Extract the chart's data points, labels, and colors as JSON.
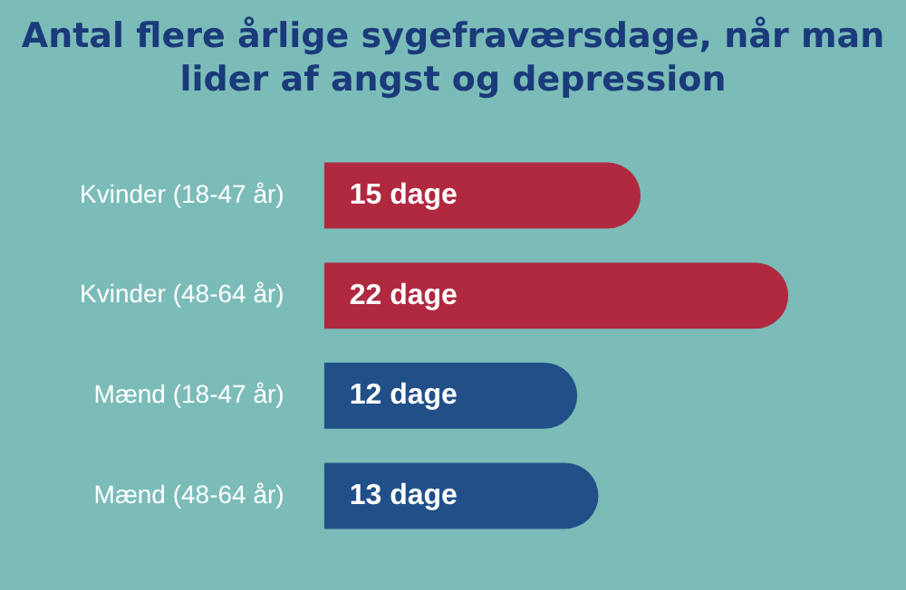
{
  "chart_data": {
    "type": "bar",
    "orientation": "horizontal",
    "title": "Antal flere årlige sygefraværsdage, når man lider af angst og depression",
    "categories": [
      "Kvinder (18-47 år)",
      "Kvinder (48-64 år)",
      "Mænd (18-47 år)",
      "Mænd (48-64 år)"
    ],
    "values": [
      15,
      22,
      12,
      13
    ],
    "colors": [
      "#b0293f",
      "#b0293f",
      "#215089",
      "#215089"
    ],
    "value_labels": [
      "15 dage",
      "22 dage",
      "12 dage",
      "13 dage"
    ],
    "tick_labels": "y",
    "grid": false,
    "legend": false
  }
}
